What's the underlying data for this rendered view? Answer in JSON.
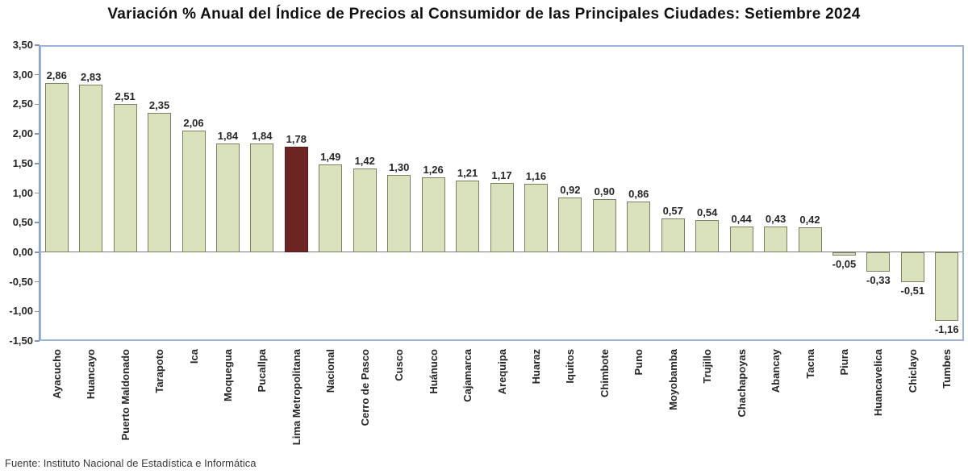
{
  "page": {
    "title": "Variación % Anual del Índice de Precios al Consumidor de las Principales Ciudades: Setiembre 2024",
    "source": "Fuente: Instituto Nacional de Estadística e Informática"
  },
  "chart_data": {
    "type": "bar",
    "title": "Variación % Anual del Índice de Precios al Consumidor de las Principales Ciudades: Setiembre 2024",
    "source": "Fuente: Instituto Nacional de Estadística e Informática",
    "xlabel": "",
    "ylabel": "",
    "grid": false,
    "legend": false,
    "decimal_separator": ",",
    "categories": [
      "Ayacucho",
      "Huancayo",
      "Puerto Maldonado",
      "Tarapoto",
      "Ica",
      "Moquegua",
      "Pucallpa",
      "Lima Metropolitana",
      "Nacional",
      "Cerro de Pasco",
      "Cusco",
      "Huánuco",
      "Cajamarca",
      "Arequipa",
      "Huaraz",
      "Iquitos",
      "Chimbote",
      "Puno",
      "Moyobamba",
      "Trujillo",
      "Chachapoyas",
      "Abancay",
      "Tacna",
      "Piura",
      "Huancavelica",
      "Chiclayo",
      "Tumbes"
    ],
    "values": [
      2.86,
      2.83,
      2.51,
      2.35,
      2.06,
      1.84,
      1.84,
      1.78,
      1.49,
      1.42,
      1.3,
      1.26,
      1.21,
      1.17,
      1.16,
      0.92,
      0.9,
      0.86,
      0.57,
      0.54,
      0.44,
      0.43,
      0.42,
      -0.05,
      -0.33,
      -0.51,
      -1.16
    ],
    "value_labels": [
      "2,86",
      "2,83",
      "2,51",
      "2,35",
      "2,06",
      "1,84",
      "1,84",
      "1,78",
      "1,49",
      "1,42",
      "1,30",
      "1,26",
      "1,21",
      "1,17",
      "1,16",
      "0,92",
      "0,90",
      "0,86",
      "0,57",
      "0,54",
      "0,44",
      "0,43",
      "0,42",
      "-0,05",
      "-0,33",
      "-0,51",
      "-1,16"
    ],
    "highlight_category": "Lima Metropolitana",
    "highlight_index": 7,
    "y_axis": {
      "min": -1.5,
      "max": 3.5,
      "step": 0.5,
      "tick_labels": [
        "3,50",
        "3,00",
        "2,50",
        "2,00",
        "1,50",
        "1,00",
        "0,50",
        "0,00",
        "-0,50",
        "-1,00",
        "-1,50"
      ]
    },
    "colors": {
      "bar_fill": "#d9e1bd",
      "bar_border": "#7e7e64",
      "highlight_fill": "#6d2523",
      "highlight_border": "#541c1a",
      "frame_border": "#9ab4d8",
      "axis_line": "#8496ad",
      "zero_line": "#7f7f7f",
      "label_text": "#262626"
    }
  }
}
